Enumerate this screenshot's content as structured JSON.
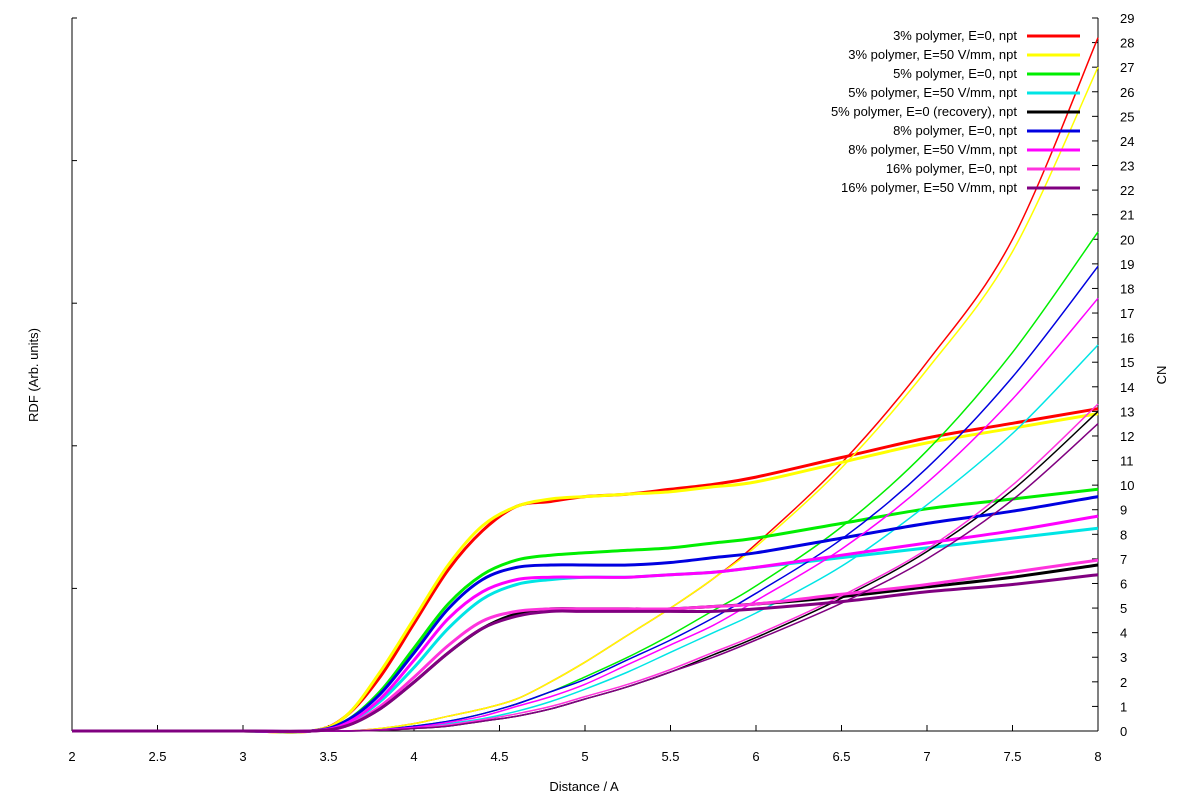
{
  "chart_data": {
    "type": "line",
    "title": "",
    "xlabel": "Distance / A",
    "ylabel_left": "RDF (Arb. units)",
    "ylabel_right": "CN",
    "xlim": [
      2,
      8
    ],
    "ylim_right": [
      0,
      29
    ],
    "x_ticks": [
      "2",
      "2.5",
      "3",
      "3.5",
      "4",
      "4.5",
      "5",
      "5.5",
      "6",
      "6.5",
      "7",
      "7.5",
      "8"
    ],
    "y_right_ticks": [
      "0",
      "1",
      "2",
      "3",
      "4",
      "5",
      "6",
      "7",
      "8",
      "9",
      "10",
      "11",
      "12",
      "13",
      "14",
      "15",
      "16",
      "17",
      "18",
      "19",
      "20",
      "21",
      "22",
      "23",
      "24",
      "25",
      "26",
      "27",
      "28",
      "29"
    ],
    "legend_position": "top-right",
    "x": [
      2,
      2.5,
      3,
      3.4,
      3.6,
      3.8,
      4.0,
      4.2,
      4.4,
      4.6,
      4.8,
      5.0,
      5.25,
      5.5,
      5.75,
      6.0,
      6.5,
      7.0,
      7.5,
      8.0
    ],
    "series": [
      {
        "name": "3% polymer, E=0, npt",
        "color": "#ff0000",
        "rdf": [
          0,
          0,
          0,
          0,
          0.3,
          1.1,
          2.2,
          3.3,
          4.1,
          4.6,
          4.7,
          4.8,
          4.85,
          4.95,
          5.05,
          5.2,
          5.6,
          6.0,
          6.3,
          6.6
        ],
        "cn": [
          0,
          0,
          0,
          0,
          0,
          0.1,
          0.3,
          0.6,
          0.9,
          1.3,
          2.0,
          2.8,
          3.9,
          5.0,
          6.2,
          7.6,
          10.9,
          15.0,
          20.0,
          28.2
        ]
      },
      {
        "name": "3% polymer, E=50 V/mm, npt",
        "color": "#ffff00",
        "rdf": [
          0,
          0,
          0,
          0,
          0.3,
          1.2,
          2.3,
          3.4,
          4.2,
          4.6,
          4.75,
          4.8,
          4.85,
          4.9,
          5.0,
          5.1,
          5.5,
          5.9,
          6.2,
          6.5
        ],
        "cn": [
          0,
          0,
          0,
          0,
          0,
          0.1,
          0.3,
          0.6,
          0.9,
          1.3,
          2.0,
          2.8,
          3.9,
          5.0,
          6.2,
          7.5,
          10.7,
          14.7,
          19.5,
          27.0
        ]
      },
      {
        "name": "5% polymer, E=0, npt",
        "color": "#00ee00",
        "rdf": [
          0,
          0,
          0,
          0,
          0.2,
          0.8,
          1.7,
          2.6,
          3.2,
          3.5,
          3.6,
          3.65,
          3.7,
          3.75,
          3.85,
          3.95,
          4.25,
          4.55,
          4.75,
          4.95
        ],
        "cn": [
          0,
          0,
          0,
          0,
          0,
          0.05,
          0.2,
          0.4,
          0.7,
          1.1,
          1.6,
          2.2,
          3.0,
          3.9,
          4.9,
          5.9,
          8.3,
          11.4,
          15.4,
          20.3
        ]
      },
      {
        "name": "5% polymer, E=50 V/mm, npt",
        "color": "#00e5e5",
        "rdf": [
          0,
          0,
          0,
          0,
          0.15,
          0.6,
          1.3,
          2.1,
          2.7,
          3.0,
          3.1,
          3.15,
          3.15,
          3.2,
          3.25,
          3.35,
          3.55,
          3.75,
          3.95,
          4.15
        ],
        "cn": [
          0,
          0,
          0,
          0,
          0,
          0.05,
          0.15,
          0.3,
          0.5,
          0.8,
          1.2,
          1.7,
          2.4,
          3.2,
          4.0,
          4.8,
          6.7,
          9.2,
          12.1,
          15.7
        ]
      },
      {
        "name": "5% polymer, E=0 (recovery), npt",
        "color": "#000000",
        "rdf": [
          0,
          0,
          0,
          0,
          0.1,
          0.45,
          1.0,
          1.6,
          2.1,
          2.4,
          2.5,
          2.5,
          2.5,
          2.5,
          2.55,
          2.6,
          2.75,
          2.95,
          3.15,
          3.4
        ],
        "cn": [
          0,
          0,
          0,
          0,
          0,
          0.03,
          0.1,
          0.2,
          0.4,
          0.6,
          0.9,
          1.3,
          1.8,
          2.4,
          3.1,
          3.8,
          5.4,
          7.3,
          9.8,
          13.0
        ]
      },
      {
        "name": "8% polymer, E=0, npt",
        "color": "#0000e0",
        "rdf": [
          0,
          0,
          0,
          0,
          0.2,
          0.75,
          1.6,
          2.5,
          3.1,
          3.35,
          3.4,
          3.4,
          3.4,
          3.45,
          3.55,
          3.65,
          3.95,
          4.25,
          4.5,
          4.8
        ],
        "cn": [
          0,
          0,
          0,
          0,
          0,
          0.05,
          0.2,
          0.4,
          0.7,
          1.1,
          1.6,
          2.1,
          2.9,
          3.7,
          4.6,
          5.6,
          7.8,
          10.7,
          14.4,
          18.9
        ]
      },
      {
        "name": "8% polymer, E=50 V/mm, npt",
        "color": "#ff00ff",
        "rdf": [
          0,
          0,
          0,
          0,
          0.15,
          0.65,
          1.45,
          2.3,
          2.85,
          3.1,
          3.15,
          3.15,
          3.15,
          3.2,
          3.25,
          3.35,
          3.6,
          3.85,
          4.1,
          4.4
        ],
        "cn": [
          0,
          0,
          0,
          0,
          0,
          0.05,
          0.15,
          0.35,
          0.6,
          1.0,
          1.4,
          1.9,
          2.7,
          3.5,
          4.3,
          5.3,
          7.4,
          10.1,
          13.5,
          17.6
        ]
      },
      {
        "name": "16% polymer, E=0, npt",
        "color": "#ff33dd",
        "rdf": [
          0,
          0,
          0,
          0,
          0.1,
          0.5,
          1.1,
          1.75,
          2.25,
          2.45,
          2.5,
          2.5,
          2.5,
          2.5,
          2.55,
          2.6,
          2.8,
          3.0,
          3.25,
          3.5
        ],
        "cn": [
          0,
          0,
          0,
          0,
          0,
          0.03,
          0.1,
          0.25,
          0.45,
          0.7,
          1.0,
          1.4,
          1.9,
          2.5,
          3.2,
          3.9,
          5.5,
          7.4,
          10.0,
          13.3
        ]
      },
      {
        "name": "16% polymer, E=50 V/mm, npt",
        "color": "#800080",
        "rdf": [
          0,
          0,
          0,
          0,
          0.1,
          0.45,
          1.0,
          1.6,
          2.1,
          2.35,
          2.45,
          2.45,
          2.45,
          2.45,
          2.45,
          2.5,
          2.65,
          2.85,
          3.0,
          3.2
        ],
        "cn": [
          0,
          0,
          0,
          0,
          0,
          0.03,
          0.1,
          0.2,
          0.4,
          0.6,
          0.9,
          1.3,
          1.8,
          2.4,
          3.0,
          3.7,
          5.2,
          7.0,
          9.4,
          12.5
        ]
      }
    ]
  }
}
